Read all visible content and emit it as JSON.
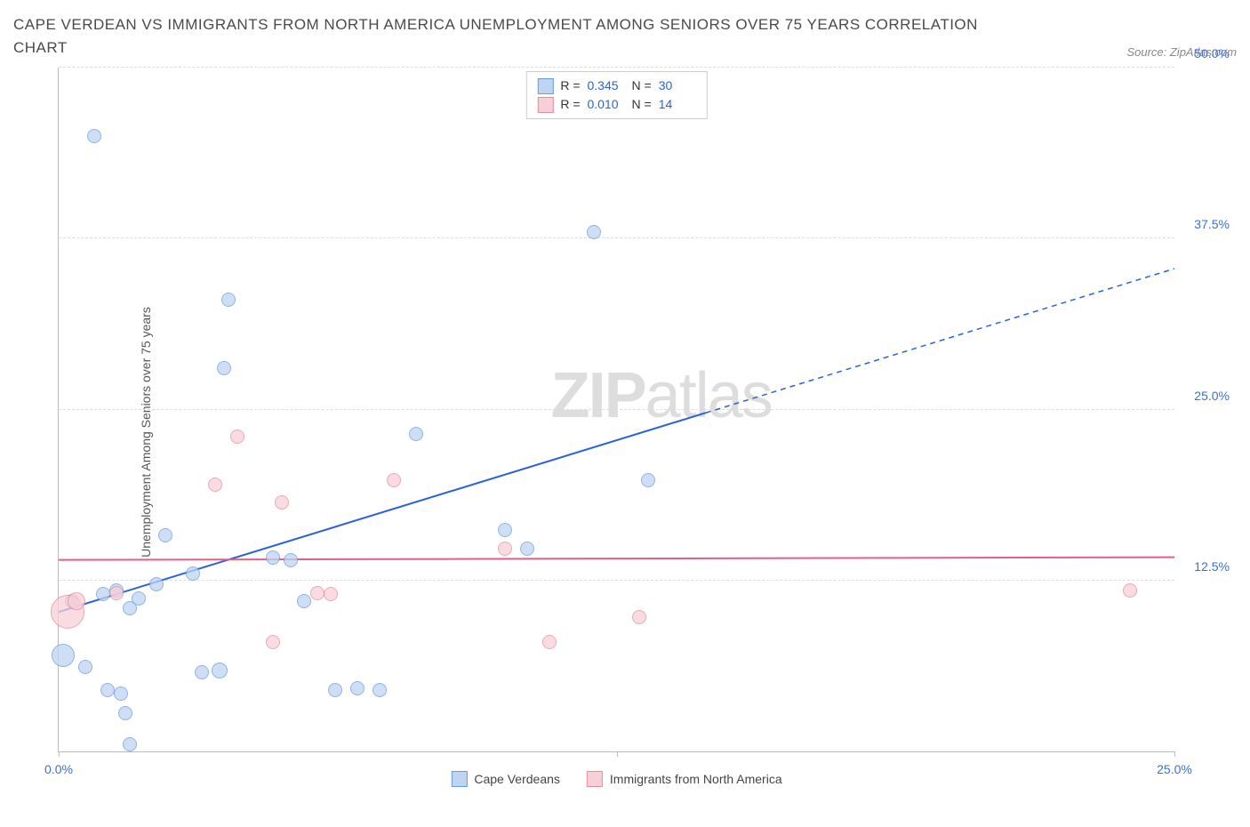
{
  "header": {
    "title": "CAPE VERDEAN VS IMMIGRANTS FROM NORTH AMERICA UNEMPLOYMENT AMONG SENIORS OVER 75 YEARS CORRELATION CHART",
    "source": "Source: ZipAtlas.com"
  },
  "chart": {
    "type": "scatter",
    "y_axis_label": "Unemployment Among Seniors over 75 years",
    "xlim": [
      0,
      25
    ],
    "ylim": [
      0,
      50
    ],
    "x_ticks": [
      0,
      12.5,
      25
    ],
    "x_tick_labels": [
      "0.0%",
      "",
      "25.0%"
    ],
    "y_ticks": [
      12.5,
      25,
      37.5,
      50
    ],
    "y_tick_labels": [
      "12.5%",
      "25.0%",
      "37.5%",
      "50.0%"
    ],
    "grid_color": "#dddddd",
    "axis_color": "#bbbbbb",
    "label_color": "#3b6fd6",
    "background_color": "#ffffff",
    "watermark": {
      "bold": "ZIP",
      "rest": "atlas"
    },
    "series": [
      {
        "name": "Cape Verdeans",
        "fill": "#bdd4f2",
        "stroke": "#6a9be0",
        "opacity": 0.75,
        "R": "0.345",
        "N": "30",
        "trend": {
          "x1": 0,
          "y1": 10.2,
          "x2": 25,
          "y2": 35.3,
          "solid_until_x": 14.5,
          "color": "#2a62d8",
          "width": 2
        },
        "points": [
          {
            "x": 0.1,
            "y": 7.0,
            "r": 12
          },
          {
            "x": 0.3,
            "y": 11.0,
            "r": 7
          },
          {
            "x": 0.8,
            "y": 45.0,
            "r": 7
          },
          {
            "x": 0.6,
            "y": 6.2,
            "r": 7
          },
          {
            "x": 1.0,
            "y": 11.5,
            "r": 7
          },
          {
            "x": 1.1,
            "y": 4.5,
            "r": 7
          },
          {
            "x": 1.3,
            "y": 11.8,
            "r": 7
          },
          {
            "x": 1.4,
            "y": 4.2,
            "r": 7
          },
          {
            "x": 1.5,
            "y": 2.8,
            "r": 7
          },
          {
            "x": 1.6,
            "y": 10.5,
            "r": 7
          },
          {
            "x": 1.6,
            "y": 0.5,
            "r": 7
          },
          {
            "x": 1.8,
            "y": 11.2,
            "r": 7
          },
          {
            "x": 2.2,
            "y": 12.2,
            "r": 7
          },
          {
            "x": 2.4,
            "y": 15.8,
            "r": 7
          },
          {
            "x": 3.0,
            "y": 13.0,
            "r": 7
          },
          {
            "x": 3.2,
            "y": 5.8,
            "r": 7
          },
          {
            "x": 3.6,
            "y": 5.9,
            "r": 8
          },
          {
            "x": 3.7,
            "y": 28.0,
            "r": 7
          },
          {
            "x": 3.8,
            "y": 33.0,
            "r": 7
          },
          {
            "x": 4.8,
            "y": 14.2,
            "r": 7
          },
          {
            "x": 5.2,
            "y": 14.0,
            "r": 7
          },
          {
            "x": 5.5,
            "y": 11.0,
            "r": 7
          },
          {
            "x": 6.2,
            "y": 4.5,
            "r": 7
          },
          {
            "x": 6.7,
            "y": 4.6,
            "r": 7
          },
          {
            "x": 7.2,
            "y": 4.5,
            "r": 7
          },
          {
            "x": 8.0,
            "y": 23.2,
            "r": 7
          },
          {
            "x": 10.0,
            "y": 16.2,
            "r": 7
          },
          {
            "x": 10.5,
            "y": 14.8,
            "r": 7
          },
          {
            "x": 12.0,
            "y": 38.0,
            "r": 7
          },
          {
            "x": 13.2,
            "y": 19.8,
            "r": 7
          }
        ]
      },
      {
        "name": "Immigrants from North America",
        "fill": "#f7cfd7",
        "stroke": "#e58ca0",
        "opacity": 0.75,
        "R": "0.010",
        "N": "14",
        "trend": {
          "x1": 0,
          "y1": 14.0,
          "x2": 25,
          "y2": 14.2,
          "solid_until_x": 25,
          "color": "#e16088",
          "width": 2
        },
        "points": [
          {
            "x": 0.2,
            "y": 10.2,
            "r": 18
          },
          {
            "x": 0.4,
            "y": 11.0,
            "r": 9
          },
          {
            "x": 1.3,
            "y": 11.6,
            "r": 7
          },
          {
            "x": 3.5,
            "y": 19.5,
            "r": 7
          },
          {
            "x": 4.0,
            "y": 23.0,
            "r": 7
          },
          {
            "x": 4.8,
            "y": 8.0,
            "r": 7
          },
          {
            "x": 5.0,
            "y": 18.2,
            "r": 7
          },
          {
            "x": 5.8,
            "y": 11.6,
            "r": 7
          },
          {
            "x": 6.1,
            "y": 11.5,
            "r": 7
          },
          {
            "x": 7.5,
            "y": 19.8,
            "r": 7
          },
          {
            "x": 10.0,
            "y": 14.8,
            "r": 7
          },
          {
            "x": 11.0,
            "y": 8.0,
            "r": 7
          },
          {
            "x": 13.0,
            "y": 9.8,
            "r": 7
          },
          {
            "x": 24.0,
            "y": 11.8,
            "r": 7
          }
        ]
      }
    ]
  }
}
